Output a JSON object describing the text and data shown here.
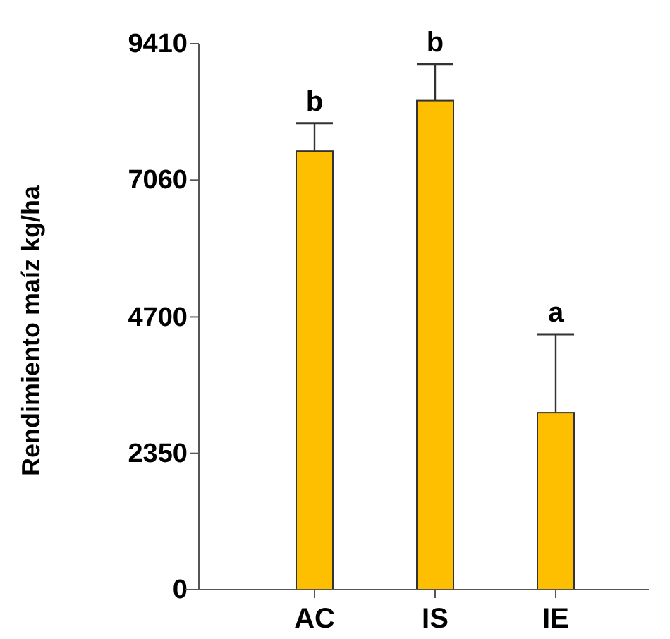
{
  "chart_data": {
    "type": "bar",
    "ylabel": "Rendimiento maíz kg/ha",
    "categories": [
      "AC",
      "IS",
      "IE"
    ],
    "values": [
      7560,
      8430,
      3050
    ],
    "errors": [
      [
        7560,
        8040
      ],
      [
        8430,
        9060
      ],
      [
        3050,
        4400
      ]
    ],
    "color": "#fdbf00",
    "ylim": [
      0,
      9410
    ],
    "yticks": [
      0,
      2350,
      4700,
      7060,
      9410
    ],
    "grid": false,
    "annotations": [
      {
        "text": "b",
        "x": "AC",
        "y": 8040
      },
      {
        "text": "b",
        "x": "IS",
        "y": 9060
      },
      {
        "text": "a",
        "x": "IE",
        "y": 4400
      }
    ]
  }
}
